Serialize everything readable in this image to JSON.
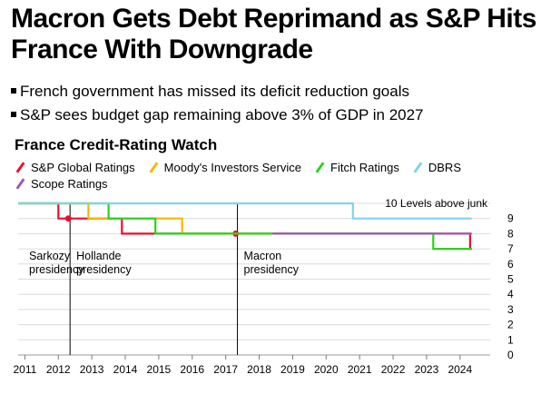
{
  "headline": "Macron Gets Debt Reprimand as S&P Hits France With Downgrade",
  "bullets": [
    "French government has missed its deficit reduction goals",
    "S&P sees budget gap remaining above 3% of GDP in 2027"
  ],
  "chart_data": {
    "type": "line",
    "title": "France Credit-Rating Watch",
    "ylabel": "",
    "xlabel": "",
    "xlim": [
      2010.8,
      2024.9
    ],
    "ylim": [
      0,
      10
    ],
    "yticks": [
      0,
      1,
      2,
      3,
      4,
      5,
      6,
      7,
      8,
      9
    ],
    "xticks": [
      2011,
      2012,
      2013,
      2014,
      2015,
      2016,
      2017,
      2018,
      2019,
      2020,
      2021,
      2022,
      2023,
      2024
    ],
    "top_annotation": "10 Levels above junk",
    "grid": true,
    "series": [
      {
        "name": "S&P Global Ratings",
        "color": "#e8112d",
        "points": [
          [
            2010.8,
            10
          ],
          [
            2012.0,
            10
          ],
          [
            2012.0,
            9
          ],
          [
            2013.9,
            9
          ],
          [
            2013.9,
            8
          ],
          [
            2024.3,
            8
          ],
          [
            2024.3,
            7
          ],
          [
            2024.35,
            7
          ]
        ],
        "markers": [
          [
            2012.3,
            9
          ],
          [
            2017.3,
            8
          ]
        ]
      },
      {
        "name": "Moody's Investors Service",
        "color": "#f5b800",
        "points": [
          [
            2010.8,
            10
          ],
          [
            2012.9,
            10
          ],
          [
            2012.9,
            9
          ],
          [
            2015.7,
            9
          ],
          [
            2015.7,
            8
          ],
          [
            2024.35,
            8
          ]
        ]
      },
      {
        "name": "Fitch Ratings",
        "color": "#2ad21e",
        "points": [
          [
            2010.8,
            10
          ],
          [
            2013.5,
            10
          ],
          [
            2013.5,
            9
          ],
          [
            2014.9,
            9
          ],
          [
            2014.9,
            8
          ],
          [
            2023.2,
            8
          ],
          [
            2023.2,
            7
          ],
          [
            2024.35,
            7
          ]
        ]
      },
      {
        "name": "DBRS",
        "color": "#7fd3eb",
        "points": [
          [
            2010.8,
            10
          ],
          [
            2020.8,
            10
          ],
          [
            2020.8,
            9
          ],
          [
            2024.35,
            9
          ]
        ]
      },
      {
        "name": "Scope Ratings",
        "color": "#9b59b6",
        "points": [
          [
            2018.4,
            8
          ],
          [
            2024.35,
            8
          ]
        ]
      }
    ],
    "presidencies": [
      {
        "name": "Sarkozy\npresidency",
        "start": 2010.8
      },
      {
        "name": "Hollande\npresidency",
        "start": 2012.35
      },
      {
        "name": "Macron\npresidency",
        "start": 2017.35
      }
    ]
  }
}
